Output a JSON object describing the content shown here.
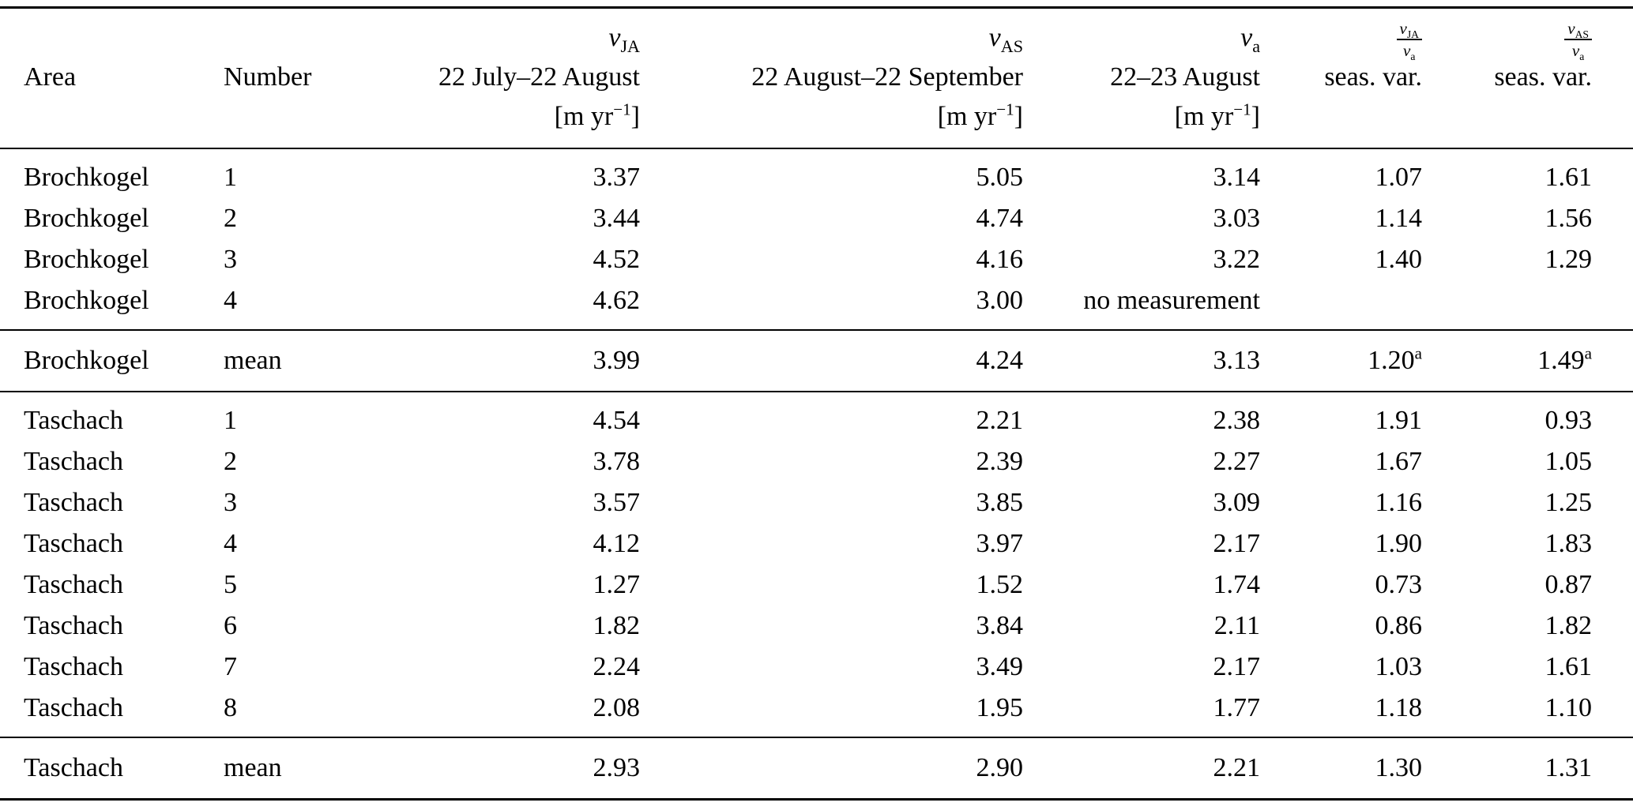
{
  "header": {
    "area": "Area",
    "number": "Number",
    "v_ja": {
      "symbol": "v",
      "sub": "JA",
      "period": "22 July–22 August",
      "unit_base": "[m yr",
      "unit_exp": "−1",
      "unit_close": "]"
    },
    "v_as": {
      "symbol": "v",
      "sub": "AS",
      "period": "22 August–22 September",
      "unit_base": "[m yr",
      "unit_exp": "−1",
      "unit_close": "]"
    },
    "v_a": {
      "symbol": "v",
      "sub": "a",
      "period": "22–23 August",
      "unit_base": "[m yr",
      "unit_exp": "−1",
      "unit_close": "]"
    },
    "ratio_ja": {
      "num_symbol": "v",
      "num_sub": "JA",
      "den_symbol": "v",
      "den_sub": "a",
      "label": "seas. var."
    },
    "ratio_as": {
      "num_symbol": "v",
      "num_sub": "AS",
      "den_symbol": "v",
      "den_sub": "a",
      "label": "seas. var."
    }
  },
  "rows_brochkogel": [
    {
      "area": "Brochkogel",
      "number": "1",
      "vja": "3.37",
      "vas": "5.05",
      "va": "3.14",
      "rja": "1.07",
      "ras": "1.61"
    },
    {
      "area": "Brochkogel",
      "number": "2",
      "vja": "3.44",
      "vas": "4.74",
      "va": "3.03",
      "rja": "1.14",
      "ras": "1.56"
    },
    {
      "area": "Brochkogel",
      "number": "3",
      "vja": "4.52",
      "vas": "4.16",
      "va": "3.22",
      "rja": "1.40",
      "ras": "1.29"
    },
    {
      "area": "Brochkogel",
      "number": "4",
      "vja": "4.62",
      "vas": "3.00",
      "va": "no measurement",
      "rja": "",
      "ras": ""
    }
  ],
  "mean_brochkogel": {
    "area": "Brochkogel",
    "number": "mean",
    "vja": "3.99",
    "vas": "4.24",
    "va": "3.13",
    "rja": "1.20",
    "rja_sup": "a",
    "ras": "1.49",
    "ras_sup": "a"
  },
  "rows_taschach": [
    {
      "area": "Taschach",
      "number": "1",
      "vja": "4.54",
      "vas": "2.21",
      "va": "2.38",
      "rja": "1.91",
      "ras": "0.93"
    },
    {
      "area": "Taschach",
      "number": "2",
      "vja": "3.78",
      "vas": "2.39",
      "va": "2.27",
      "rja": "1.67",
      "ras": "1.05"
    },
    {
      "area": "Taschach",
      "number": "3",
      "vja": "3.57",
      "vas": "3.85",
      "va": "3.09",
      "rja": "1.16",
      "ras": "1.25"
    },
    {
      "area": "Taschach",
      "number": "4",
      "vja": "4.12",
      "vas": "3.97",
      "va": "2.17",
      "rja": "1.90",
      "ras": "1.83"
    },
    {
      "area": "Taschach",
      "number": "5",
      "vja": "1.27",
      "vas": "1.52",
      "va": "1.74",
      "rja": "0.73",
      "ras": "0.87"
    },
    {
      "area": "Taschach",
      "number": "6",
      "vja": "1.82",
      "vas": "3.84",
      "va": "2.11",
      "rja": "0.86",
      "ras": "1.82"
    },
    {
      "area": "Taschach",
      "number": "7",
      "vja": "2.24",
      "vas": "3.49",
      "va": "2.17",
      "rja": "1.03",
      "ras": "1.61"
    },
    {
      "area": "Taschach",
      "number": "8",
      "vja": "2.08",
      "vas": "1.95",
      "va": "1.77",
      "rja": "1.18",
      "ras": "1.10"
    }
  ],
  "mean_taschach": {
    "area": "Taschach",
    "number": "mean",
    "vja": "2.93",
    "vas": "2.90",
    "va": "2.21",
    "rja": "1.30",
    "ras": "1.31"
  }
}
